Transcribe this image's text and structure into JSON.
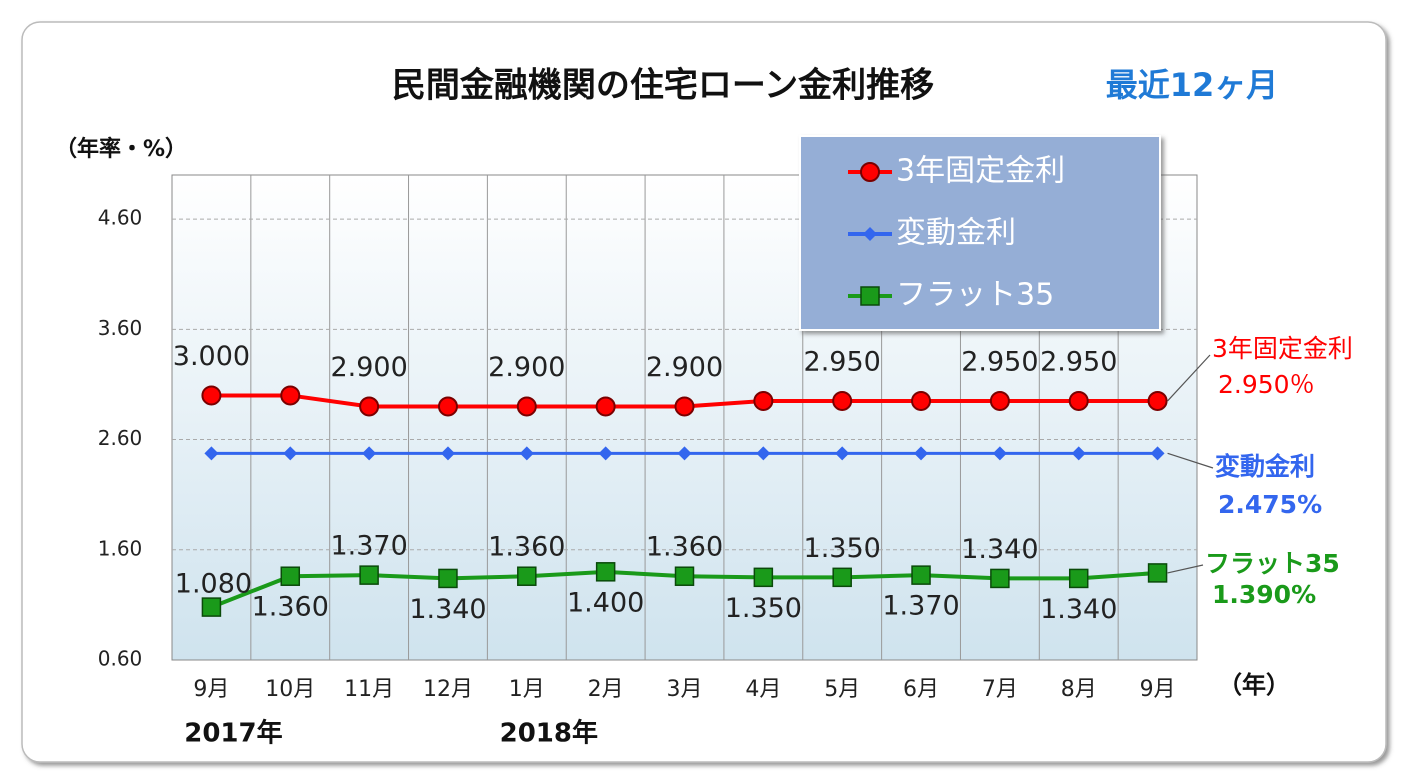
{
  "chart_data": {
    "type": "line",
    "title": "民間金融機関の住宅ローン金利推移",
    "subtitle": "最近12ヶ月",
    "y_axis_label": "（年率・%）",
    "x_axis_label": "（年）",
    "categories": [
      "9月",
      "10月",
      "11月",
      "12月",
      "1月",
      "2月",
      "3月",
      "4月",
      "5月",
      "6月",
      "7月",
      "8月",
      "9月"
    ],
    "year_labels": [
      "2017年",
      null,
      null,
      null,
      "2018年",
      null,
      null,
      null,
      null,
      null,
      null,
      null,
      null
    ],
    "ylim": [
      0.6,
      5.0
    ],
    "yticks": [
      {
        "value": 0.6,
        "label": "0.60"
      },
      {
        "value": 1.6,
        "label": "1.60"
      },
      {
        "value": 2.6,
        "label": "2.60"
      },
      {
        "value": 3.6,
        "label": "3.60"
      },
      {
        "value": 4.6,
        "label": "4.60"
      }
    ],
    "grid": true,
    "legend": "upper right",
    "series": [
      {
        "name": "3年固定金利",
        "color": "#ff0000",
        "marker": "circle",
        "values": [
          3.0,
          3.0,
          2.9,
          2.9,
          2.9,
          2.9,
          2.9,
          2.95,
          2.95,
          2.95,
          2.95,
          2.95,
          2.95
        ],
        "value_labels": [
          "3.000",
          null,
          "2.900",
          null,
          "2.900",
          null,
          "2.900",
          null,
          "2.950",
          null,
          "2.950",
          "2.950",
          null
        ],
        "end_label": "2.950％"
      },
      {
        "name": "変動金利",
        "color": "#3366ee",
        "marker": "diamond",
        "values": [
          2.475,
          2.475,
          2.475,
          2.475,
          2.475,
          2.475,
          2.475,
          2.475,
          2.475,
          2.475,
          2.475,
          2.475,
          2.475
        ],
        "end_label": "2.475%"
      },
      {
        "name": "フラット35",
        "color": "#1a9a1a",
        "marker": "square",
        "values": [
          1.08,
          1.36,
          1.37,
          1.34,
          1.36,
          1.4,
          1.36,
          1.35,
          1.35,
          1.37,
          1.34,
          1.34,
          1.39
        ],
        "value_labels": [
          "1.080",
          "1.360",
          "1.370",
          "1.340",
          "1.360",
          "1.400",
          "1.360",
          "1.350",
          "1.350",
          "1.370",
          "1.340",
          "1.340",
          null
        ],
        "end_label": "1.390%"
      }
    ]
  }
}
